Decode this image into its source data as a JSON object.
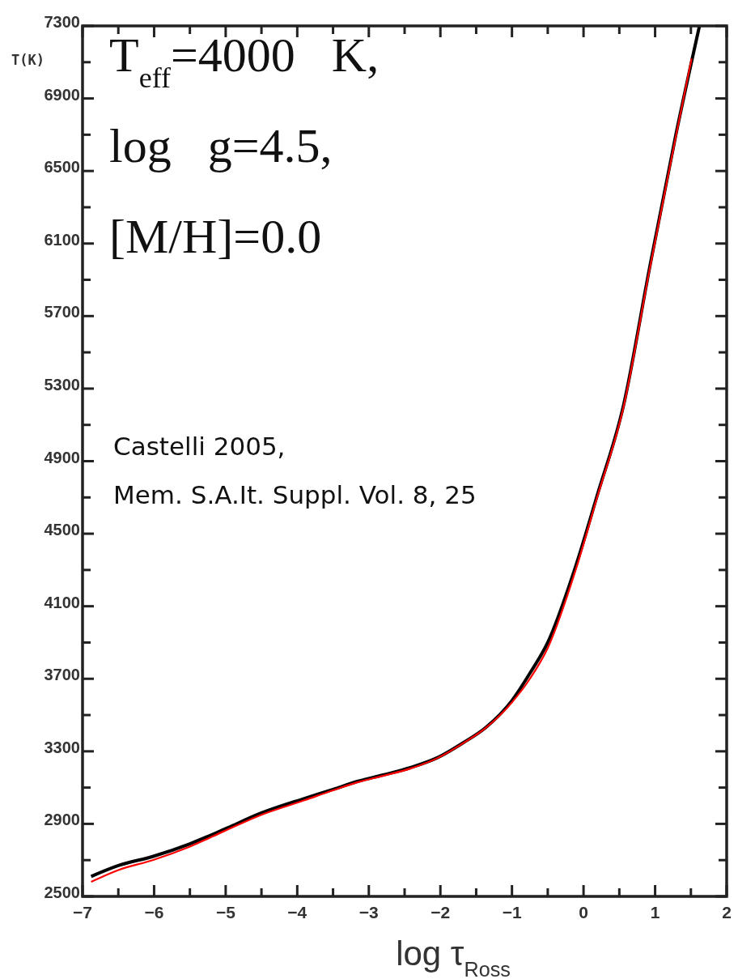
{
  "chart_data": {
    "type": "line",
    "xlabel": "log τ$_{Ross}$",
    "ylabel": "T(K)",
    "annotations": [
      "T$_{eff}$=4000   K,",
      "log   g=4.5,",
      "[M/H]=0.0",
      "Castelli 2005,",
      "Mem. S.A.It. Suppl. Vol. 8, 25"
    ],
    "xlim": [
      -7,
      2
    ],
    "ylim": [
      2500,
      7300
    ],
    "xticks": [
      -7,
      {
        "value": -6.5,
        "label": null
      },
      -6,
      {
        "value": -5.5,
        "label": null
      },
      -5,
      {
        "value": -4.5,
        "label": null
      },
      -4,
      {
        "value": -3.5,
        "label": null
      },
      -3,
      {
        "value": -2.5,
        "label": null
      },
      -2,
      {
        "value": -1.5,
        "label": null
      },
      -1,
      {
        "value": -0.5,
        "label": null
      },
      0,
      {
        "value": 0.5,
        "label": null
      },
      1,
      {
        "value": 1.5,
        "label": null
      },
      2
    ],
    "yticks": [
      2500,
      {
        "value": 2700,
        "label": null
      },
      2900,
      {
        "value": 3100,
        "label": null
      },
      3300,
      {
        "value": 3500,
        "label": null
      },
      3700,
      {
        "value": 3900,
        "label": null
      },
      4100,
      {
        "value": 4300,
        "label": null
      },
      4500,
      {
        "value": 4700,
        "label": null
      },
      4900,
      {
        "value": 5100,
        "label": null
      },
      5300,
      {
        "value": 5500,
        "label": null
      },
      5700,
      {
        "value": 5900,
        "label": null
      },
      6100,
      {
        "value": 6300,
        "label": null
      },
      6500,
      {
        "value": 6700,
        "label": null
      },
      6900,
      {
        "value": 7100,
        "label": null
      },
      7300
    ],
    "grid": false,
    "marker": "none",
    "line_style": "solid",
    "series": [
      {
        "color": "#000000",
        "x": [
          -6.88,
          -6.5,
          -6.02,
          -5.5,
          -5.02,
          -4.5,
          -3.9,
          -3.5,
          -3.15,
          -2.8,
          -2.42,
          -2.04,
          -1.67,
          -1.37,
          -1.0,
          -0.75,
          -0.5,
          -0.11,
          0.19,
          0.56,
          0.92,
          1.29,
          1.62
        ],
        "values": [
          2610,
          2670,
          2720,
          2790,
          2870,
          2960,
          3040,
          3090,
          3135,
          3170,
          3210,
          3265,
          3350,
          3430,
          3580,
          3730,
          3900,
          4320,
          4710,
          5210,
          5960,
          6700,
          7300
        ]
      },
      {
        "color": "#ff0000",
        "x": [
          -6.88,
          -6.5,
          -6.02,
          -5.5,
          -5.02,
          -4.5,
          -3.9,
          -3.5,
          -3.15,
          -2.8,
          -2.42,
          -2.04,
          -1.67,
          -1.37,
          -1.0,
          -0.75,
          -0.5,
          -0.11,
          0.19,
          0.56,
          0.92,
          1.29,
          1.51
        ],
        "values": [
          2580,
          2645,
          2700,
          2775,
          2860,
          2950,
          3030,
          3085,
          3130,
          3165,
          3205,
          3263,
          3348,
          3428,
          3570,
          3700,
          3870,
          4300,
          4700,
          5200,
          5950,
          6690,
          7120
        ]
      }
    ]
  }
}
